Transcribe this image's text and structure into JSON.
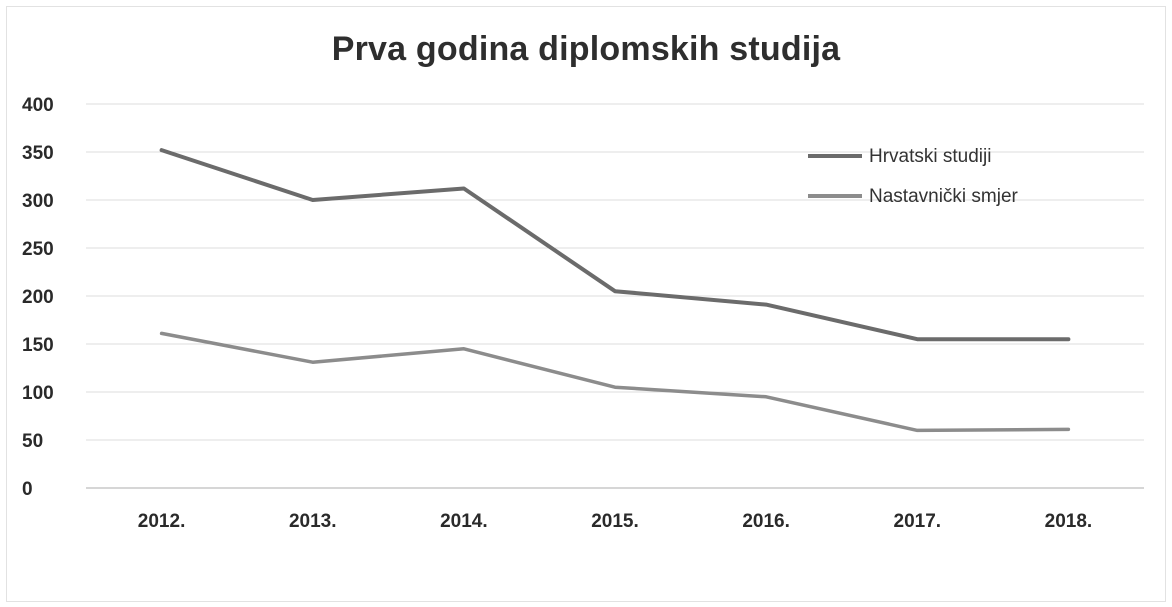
{
  "chart_data": {
    "type": "line",
    "title": "Prva godina diplomskih studija",
    "categories": [
      "2012.",
      "2013.",
      "2014.",
      "2015.",
      "2016.",
      "2017.",
      "2018."
    ],
    "series": [
      {
        "name": "Hrvatski studiji",
        "values": [
          352,
          300,
          312,
          205,
          191,
          155,
          155
        ],
        "color": "#6b6b6b"
      },
      {
        "name": "Nastavnički smjer",
        "values": [
          161,
          131,
          145,
          105,
          95,
          60,
          61
        ],
        "color": "#8c8c8c"
      }
    ],
    "y_ticks": [
      "0",
      "50",
      "100",
      "150",
      "200",
      "250",
      "300",
      "350",
      "400"
    ],
    "ylim": [
      0,
      400
    ],
    "grid": true,
    "legend_position": "top-right",
    "xlabel": "",
    "ylabel": ""
  }
}
